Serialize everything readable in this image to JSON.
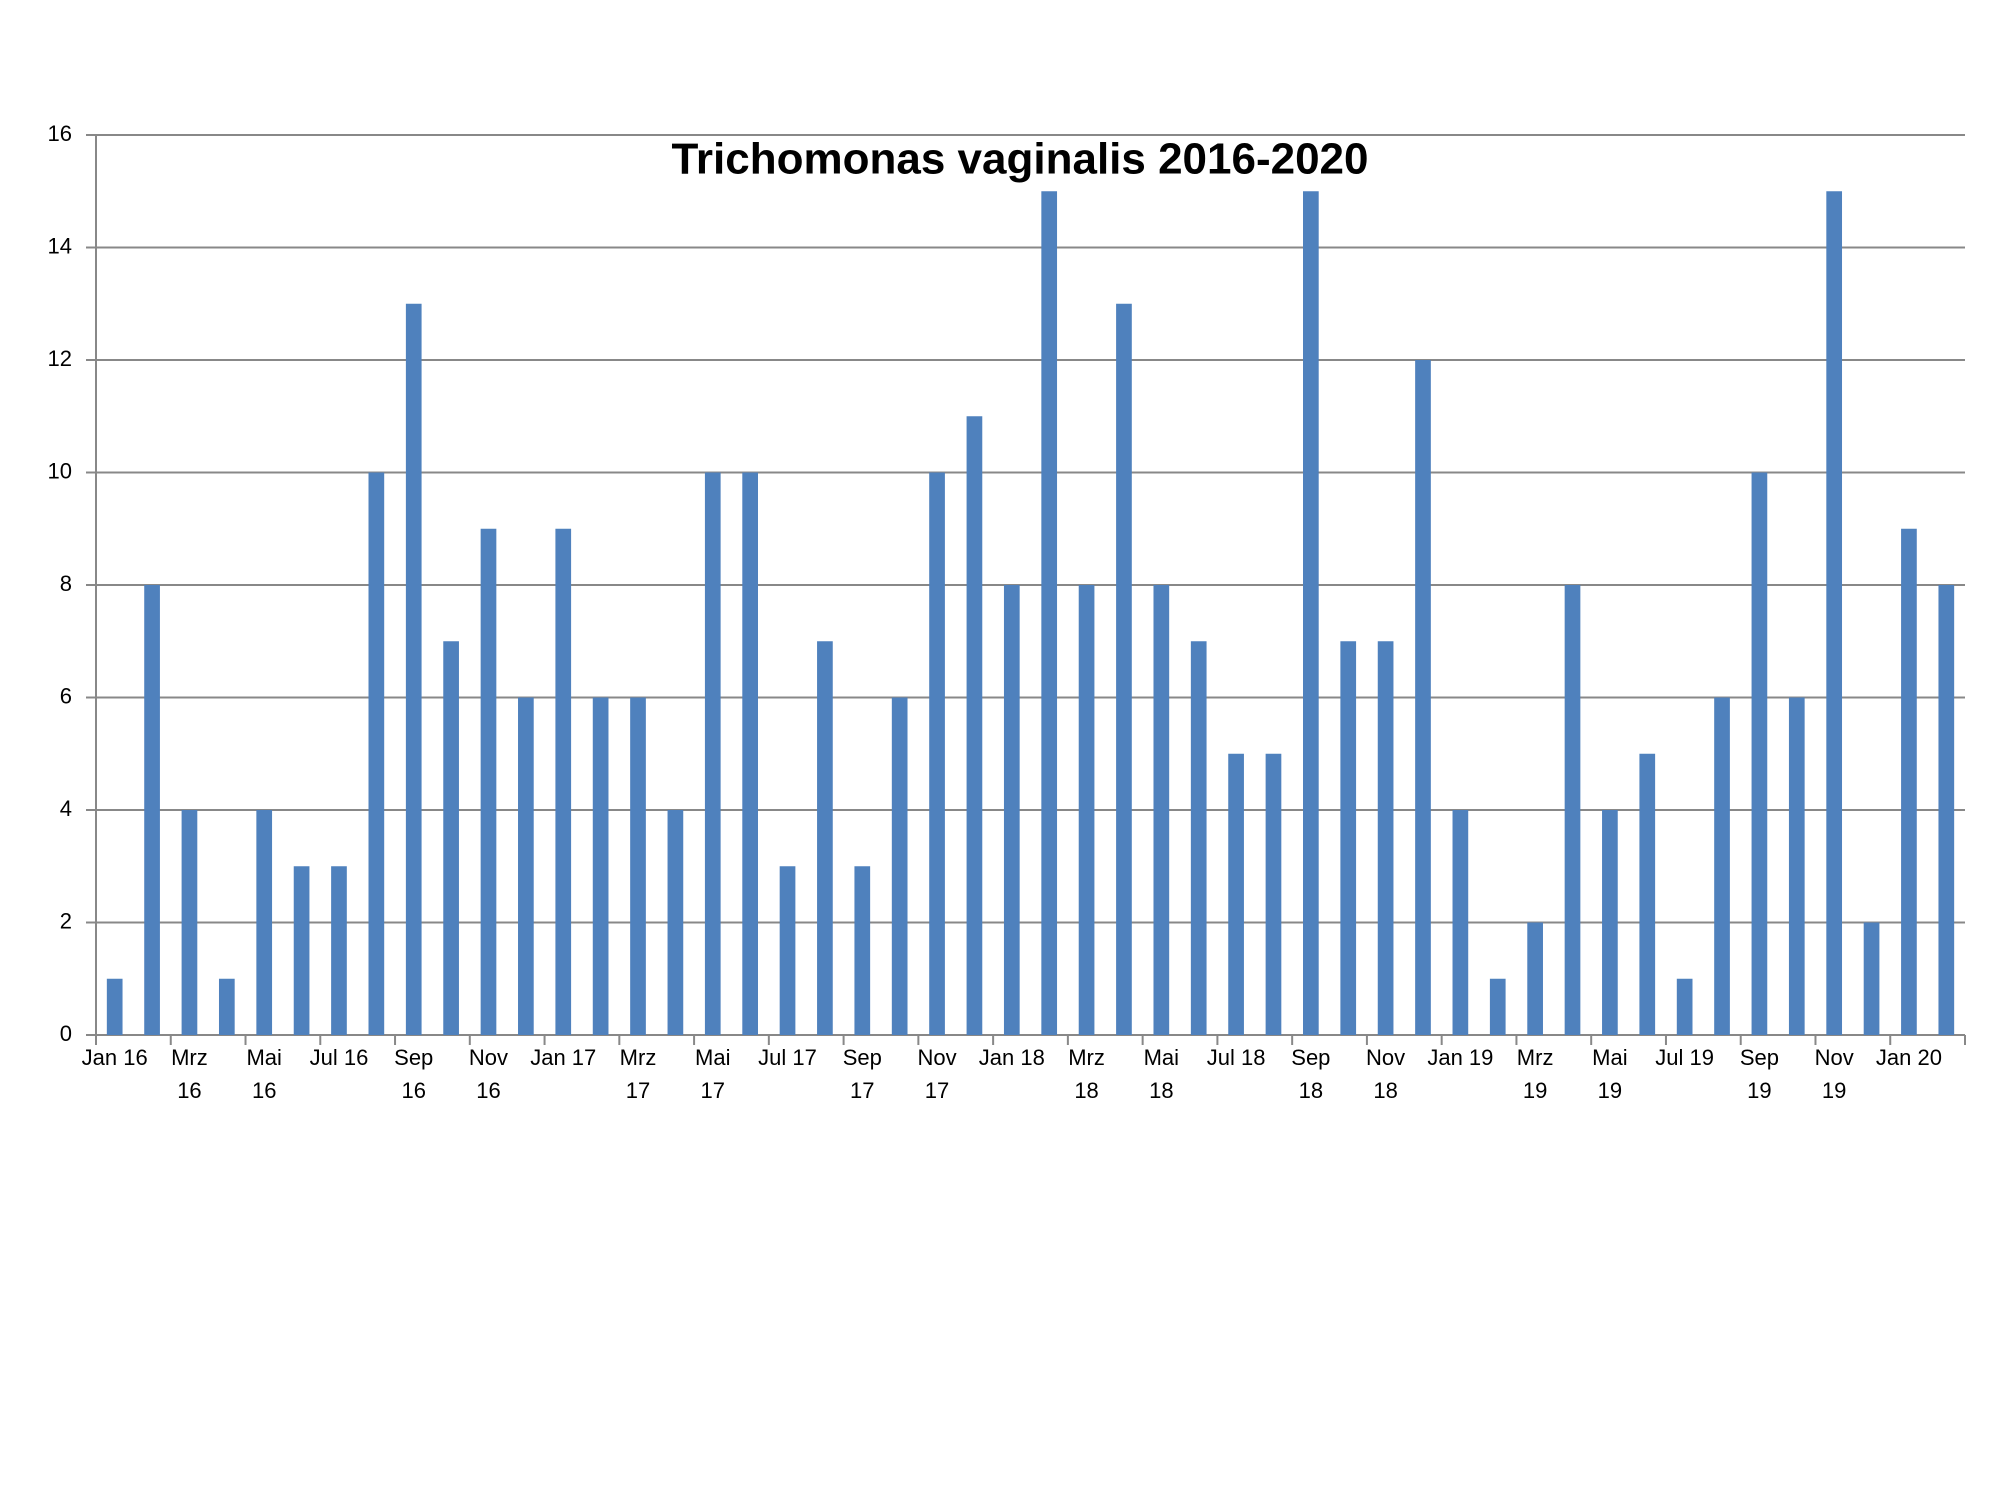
{
  "chart_data": {
    "type": "bar",
    "title": "Trichomonas  vaginalis 2016-2020",
    "categories": [
      "Jan 16",
      null,
      "Mrz\n16",
      null,
      "Mai\n16",
      null,
      "Jul 16",
      null,
      "Sep\n16",
      null,
      "Nov\n16",
      null,
      "Jan 17",
      null,
      "Mrz\n17",
      null,
      "Mai\n17",
      null,
      "Jul 17",
      null,
      "Sep\n17",
      null,
      "Nov\n17",
      null,
      "Jan 18",
      null,
      "Mrz\n18",
      null,
      "Mai\n18",
      null,
      "Jul 18",
      null,
      "Sep\n18",
      null,
      "Nov\n18",
      null,
      "Jan 19",
      null,
      "Mrz\n19",
      null,
      "Mai\n19",
      null,
      "Jul 19",
      null,
      "Sep\n19",
      null,
      "Nov\n19",
      null,
      "Jan 20",
      null
    ],
    "values": [
      1,
      8,
      4,
      1,
      4,
      3,
      3,
      10,
      13,
      7,
      9,
      6,
      9,
      6,
      6,
      4,
      10,
      10,
      3,
      7,
      3,
      6,
      10,
      11,
      8,
      15,
      8,
      13,
      8,
      7,
      5,
      5,
      15,
      7,
      7,
      12,
      4,
      1,
      2,
      8,
      4,
      5,
      1,
      6,
      10,
      6,
      15,
      2,
      9,
      8
    ],
    "color": "#4f81bd",
    "ylim": [
      0,
      16
    ],
    "yticks": [
      0,
      2,
      4,
      6,
      8,
      10,
      12,
      14,
      16
    ],
    "grid": true
  }
}
